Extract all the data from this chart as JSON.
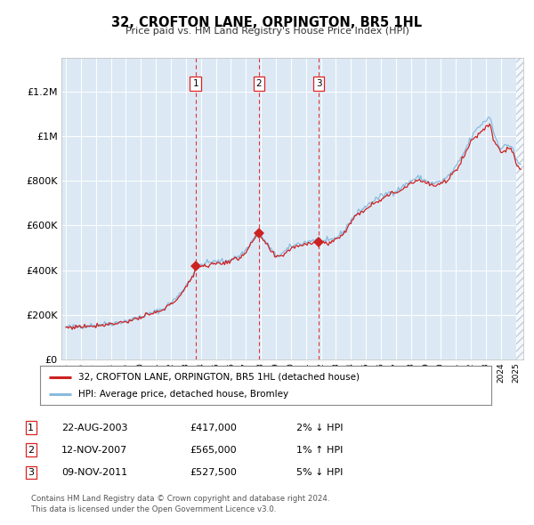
{
  "title": "32, CROFTON LANE, ORPINGTON, BR5 1HL",
  "subtitle": "Price paid vs. HM Land Registry's House Price Index (HPI)",
  "background_color": "#dce9f5",
  "plot_bg_color": "#dce9f5",
  "legend_line1": "32, CROFTON LANE, ORPINGTON, BR5 1HL (detached house)",
  "legend_line2": "HPI: Average price, detached house, Bromley",
  "transactions": [
    {
      "num": 1,
      "date": "2003-08-22",
      "x_year": 2003.64,
      "price": 417000,
      "label": "22-AUG-2003",
      "amount": "£417,000",
      "hpi_pct": "2%",
      "hpi_dir": "↓"
    },
    {
      "num": 2,
      "date": "2007-11-12",
      "x_year": 2007.86,
      "price": 565000,
      "label": "12-NOV-2007",
      "amount": "£565,000",
      "hpi_pct": "1%",
      "hpi_dir": "↑"
    },
    {
      "num": 3,
      "date": "2011-11-09",
      "x_year": 2011.85,
      "price": 527500,
      "label": "09-NOV-2011",
      "amount": "£527,500",
      "hpi_pct": "5%",
      "hpi_dir": "↓"
    }
  ],
  "red_line_color": "#cc2222",
  "blue_line_color": "#88bbdd",
  "dashed_line_color": "#dd2222",
  "marker_color": "#cc2222",
  "grid_color": "#ffffff",
  "ytick_labels": [
    "£0",
    "£200K",
    "£400K",
    "£600K",
    "£800K",
    "£1M",
    "£1.2M"
  ],
  "ytick_values": [
    0,
    200000,
    400000,
    600000,
    800000,
    1000000,
    1200000
  ],
  "ylim": [
    0,
    1350000
  ],
  "xlim_start": 1994.7,
  "xlim_end": 2025.5,
  "footer": "Contains HM Land Registry data © Crown copyright and database right 2024.\nThis data is licensed under the Open Government Licence v3.0.",
  "hatch_color": "#aabbcc"
}
